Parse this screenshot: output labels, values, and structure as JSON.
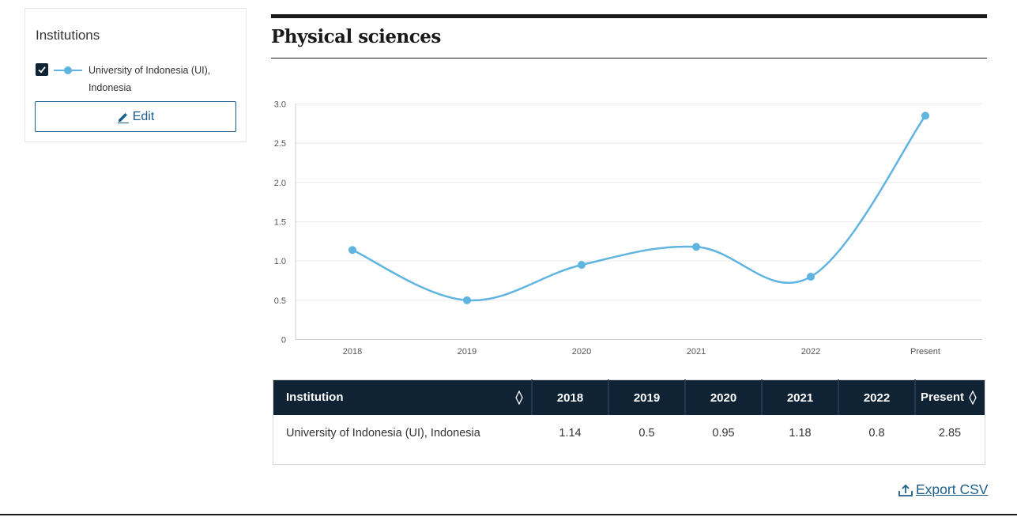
{
  "sidebar": {
    "title": "Institutions",
    "institutions": [
      {
        "name": "University of Indonesia (UI), Indonesia",
        "checked": true,
        "color": "#5fb4e0"
      }
    ],
    "edit_label": "Edit"
  },
  "chart_data": {
    "type": "line",
    "title": "Physical sciences",
    "categories": [
      "2018",
      "2019",
      "2020",
      "2021",
      "2022",
      "Present"
    ],
    "series": [
      {
        "name": "University of Indonesia (UI), Indonesia",
        "values": [
          1.14,
          0.5,
          0.95,
          1.18,
          0.8,
          2.85
        ],
        "color": "#5fb4e0"
      }
    ],
    "ylim": [
      0,
      3.0
    ],
    "yticks": [
      "0",
      "0.5",
      "1.0",
      "1.5",
      "2.0",
      "2.5",
      "3.0"
    ],
    "grid": true
  },
  "table": {
    "headers": [
      "Institution",
      "2018",
      "2019",
      "2020",
      "2021",
      "2022",
      "Present"
    ],
    "rows": [
      {
        "institution": "University of Indonesia (UI), Indonesia",
        "values": [
          "1.14",
          "0.5",
          "0.95",
          "1.18",
          "0.8",
          "2.85"
        ]
      }
    ]
  },
  "export_label": "Export CSV",
  "icons": {
    "check": "check-icon",
    "edit": "pencil-icon",
    "sort": "sort-icon",
    "export": "upload-icon"
  }
}
